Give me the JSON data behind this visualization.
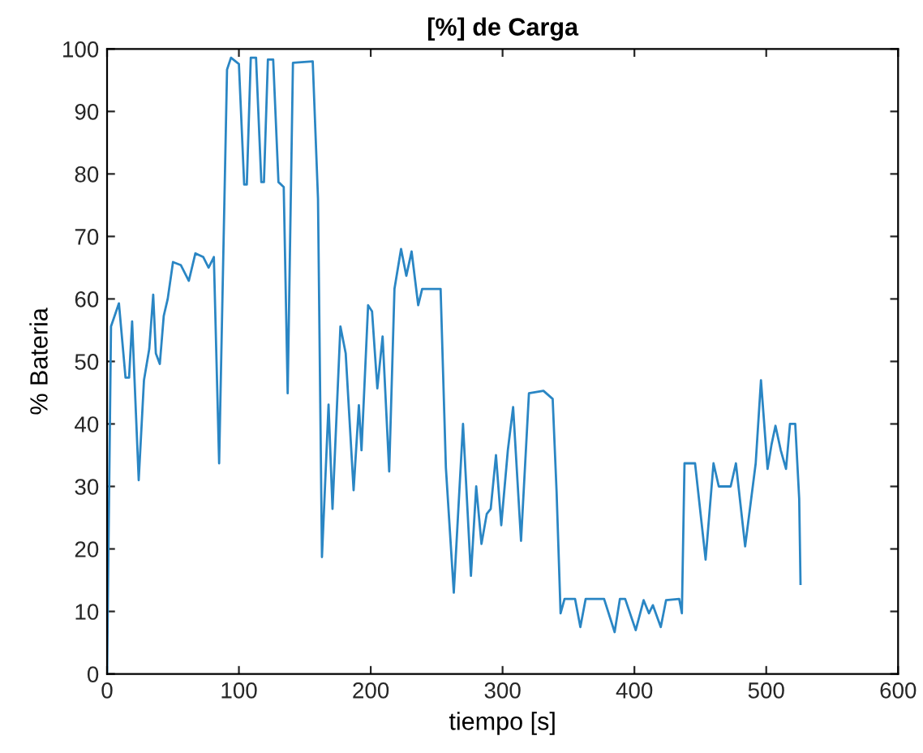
{
  "chart_data": {
    "type": "line",
    "title": "[%] de Carga",
    "xlabel": "tiempo [s]",
    "ylabel": "% Bateria",
    "x": [
      0,
      3,
      9,
      14,
      16.7,
      19,
      24,
      28,
      32,
      35,
      37,
      40,
      43,
      46,
      50,
      56,
      62,
      67,
      73,
      77,
      81,
      85,
      91,
      94,
      100,
      104,
      106,
      109,
      113,
      117,
      119,
      122,
      126,
      130,
      134,
      137,
      141,
      156,
      160,
      163,
      168,
      171,
      177,
      181,
      187,
      191,
      193,
      198,
      201,
      205,
      209,
      214,
      218,
      223,
      227,
      231,
      236,
      239,
      253,
      257,
      263,
      270,
      276,
      280,
      284,
      288,
      291,
      295,
      299,
      304,
      308,
      314,
      320,
      331,
      338,
      341,
      344,
      347,
      355,
      359,
      363,
      377,
      385,
      389,
      393,
      401,
      407,
      411,
      414,
      420,
      424,
      434,
      436,
      438,
      442,
      446,
      454,
      460,
      464,
      473,
      477,
      484,
      492,
      496,
      501,
      504,
      507,
      511,
      515,
      518,
      522,
      525,
      526
    ],
    "series": [
      {
        "color": "#2a86c4",
        "values": [
          0,
          55.6,
          59.3,
          47.4,
          47.4,
          56.4,
          31,
          47,
          52,
          60.7,
          51.3,
          49.6,
          57.3,
          60,
          65.9,
          65.4,
          62.9,
          67.3,
          66.7,
          65,
          66.7,
          33.7,
          96.7,
          98.6,
          97.6,
          78.3,
          78.3,
          98.6,
          98.6,
          78.7,
          78.7,
          98.3,
          98.3,
          78.7,
          77.9,
          44.9,
          97.8,
          98,
          76,
          18.7,
          43.1,
          26.4,
          55.6,
          51.3,
          29.4,
          43,
          35.8,
          59,
          58,
          45.7,
          54,
          32.4,
          61.6,
          68,
          63.7,
          67.6,
          59,
          61.6,
          61.6,
          33,
          13,
          40,
          15.7,
          30,
          20.8,
          25.6,
          26.4,
          35,
          23.8,
          35.8,
          42.7,
          21.3,
          44.9,
          45.3,
          44,
          29,
          9.7,
          12,
          12,
          7.5,
          12,
          12,
          6.7,
          12,
          12,
          7,
          11.8,
          9.7,
          11,
          7.5,
          11.8,
          12,
          9.7,
          33.7,
          33.7,
          33.7,
          18.3,
          33.7,
          30,
          30,
          33.7,
          20.4,
          33.7,
          47,
          32.8,
          36.7,
          39.7,
          35.8,
          32.8,
          40,
          40,
          28,
          14.4
        ]
      }
    ],
    "xlim": [
      0,
      600
    ],
    "xticks": [
      0,
      100,
      200,
      300,
      400,
      500,
      600
    ],
    "ylim": [
      0,
      100
    ],
    "yticks": [
      0,
      10,
      20,
      30,
      40,
      50,
      60,
      70,
      80,
      90,
      100
    ],
    "grid": false,
    "legend": false,
    "marker": "none",
    "line_style": "solid"
  }
}
